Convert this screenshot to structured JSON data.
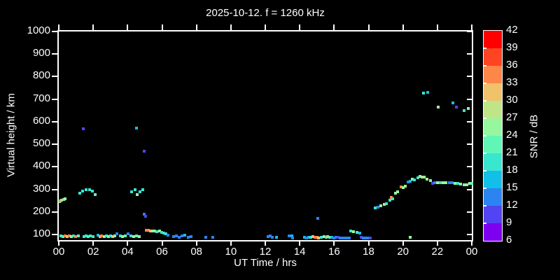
{
  "title": "2025-10-12. f = 1260 kHz",
  "colors": {
    "background": "#000000",
    "foreground": "#ffffff"
  },
  "axes": {
    "xlabel": "UT Time / hrs",
    "ylabel": "Virtual height / km",
    "x_tick_labels": [
      "00",
      "02",
      "04",
      "06",
      "08",
      "10",
      "12",
      "14",
      "16",
      "18",
      "20",
      "22",
      "00"
    ],
    "x_tick_hours": [
      0,
      2,
      4,
      6,
      8,
      10,
      12,
      14,
      16,
      18,
      20,
      22,
      24
    ],
    "y_tick_values": [
      100,
      200,
      300,
      400,
      500,
      600,
      700,
      800,
      900,
      1000
    ],
    "grid": "off"
  },
  "colorbar": {
    "label": "SNR / dB",
    "tick_values": [
      42,
      39,
      36,
      33,
      30,
      27,
      24,
      21,
      18,
      15,
      12,
      9,
      6
    ],
    "range": [
      6,
      42
    ],
    "step": 3,
    "palette_low_to_high": [
      "#7E00F0",
      "#5244F2",
      "#2B84F2",
      "#12BFE8",
      "#39E6CF",
      "#60F7B6",
      "#97F79E",
      "#BFE588",
      "#F0C26B",
      "#FC8748",
      "#FF4422",
      "#FF0000"
    ]
  },
  "chart_data": {
    "type": "scatter",
    "title": "2025-10-12. f = 1260 kHz",
    "xlabel": "UT Time / hrs",
    "ylabel": "Virtual height / km",
    "color_dimension": "SNR / dB",
    "xlim": [
      0,
      24
    ],
    "ylim": [
      75,
      1000
    ],
    "legend_position": "colorbar-right",
    "points_time_height_snr": [
      [
        0.02,
        248,
        25
      ],
      [
        0.06,
        245,
        25
      ],
      [
        0.1,
        248,
        34
      ],
      [
        0.16,
        251,
        31
      ],
      [
        0.3,
        254,
        22
      ],
      [
        0.38,
        257,
        25
      ],
      [
        0.12,
        94,
        19
      ],
      [
        0.24,
        92,
        22
      ],
      [
        0.36,
        94,
        34
      ],
      [
        0.48,
        92,
        31
      ],
      [
        0.6,
        94,
        34
      ],
      [
        0.72,
        92,
        25
      ],
      [
        0.85,
        94,
        19
      ],
      [
        0.97,
        92,
        34
      ],
      [
        1.13,
        94,
        22
      ],
      [
        1.45,
        92,
        19
      ],
      [
        1.58,
        94,
        19
      ],
      [
        1.7,
        92,
        22
      ],
      [
        1.82,
        94,
        19
      ],
      [
        1.98,
        92,
        19
      ],
      [
        2.26,
        96,
        16
      ],
      [
        2.38,
        92,
        31
      ],
      [
        2.5,
        94,
        34
      ],
      [
        2.63,
        92,
        25
      ],
      [
        2.75,
        94,
        19
      ],
      [
        2.87,
        92,
        25
      ],
      [
        2.99,
        94,
        19
      ],
      [
        3.15,
        92,
        31
      ],
      [
        3.27,
        94,
        25
      ],
      [
        3.39,
        103,
        13
      ],
      [
        3.56,
        94,
        19
      ],
      [
        3.72,
        92,
        25
      ],
      [
        3.88,
        94,
        22
      ],
      [
        4.04,
        103,
        13
      ],
      [
        4.2,
        94,
        19
      ],
      [
        4.36,
        92,
        25
      ],
      [
        4.52,
        94,
        22
      ],
      [
        4.68,
        92,
        25
      ],
      [
        1.21,
        282,
        19
      ],
      [
        1.37,
        291,
        19
      ],
      [
        1.58,
        297,
        19
      ],
      [
        1.78,
        297,
        19
      ],
      [
        1.94,
        291,
        19
      ],
      [
        2.1,
        278,
        22
      ],
      [
        1.41,
        568,
        10
      ],
      [
        4.24,
        288,
        19
      ],
      [
        4.44,
        297,
        19
      ],
      [
        4.57,
        278,
        25
      ],
      [
        4.73,
        288,
        19
      ],
      [
        4.89,
        300,
        19
      ],
      [
        4.53,
        571,
        16
      ],
      [
        4.97,
        469,
        10
      ],
      [
        4.97,
        189,
        13
      ],
      [
        5.05,
        180,
        10
      ],
      [
        5.09,
        118,
        34
      ],
      [
        5.21,
        118,
        34
      ],
      [
        5.33,
        115,
        31
      ],
      [
        5.45,
        115,
        25
      ],
      [
        5.58,
        115,
        25
      ],
      [
        5.7,
        112,
        19
      ],
      [
        5.86,
        115,
        25
      ],
      [
        5.98,
        109,
        19
      ],
      [
        6.1,
        106,
        19
      ],
      [
        6.22,
        103,
        19
      ],
      [
        6.34,
        97,
        13
      ],
      [
        6.67,
        91,
        13
      ],
      [
        6.83,
        94,
        13
      ],
      [
        6.99,
        88,
        13
      ],
      [
        7.15,
        94,
        13
      ],
      [
        7.31,
        97,
        16
      ],
      [
        7.52,
        88,
        13
      ],
      [
        7.68,
        91,
        13
      ],
      [
        8.53,
        88,
        13
      ],
      [
        8.93,
        88,
        13
      ],
      [
        12.16,
        91,
        13
      ],
      [
        12.28,
        94,
        13
      ],
      [
        12.4,
        88,
        13
      ],
      [
        12.65,
        88,
        16
      ],
      [
        13.37,
        94,
        13
      ],
      [
        13.54,
        94,
        16
      ],
      [
        13.58,
        85,
        13
      ],
      [
        14.26,
        88,
        16
      ],
      [
        14.39,
        85,
        13
      ],
      [
        14.51,
        88,
        16
      ],
      [
        14.63,
        88,
        19
      ],
      [
        14.75,
        91,
        31
      ],
      [
        14.87,
        88,
        34
      ],
      [
        14.99,
        88,
        34
      ],
      [
        15.11,
        85,
        31
      ],
      [
        15.27,
        88,
        19
      ],
      [
        15.4,
        91,
        25
      ],
      [
        15.52,
        88,
        19
      ],
      [
        15.64,
        91,
        31
      ],
      [
        15.76,
        88,
        22
      ],
      [
        15.88,
        88,
        16
      ],
      [
        16.0,
        85,
        13
      ],
      [
        16.12,
        88,
        13
      ],
      [
        16.24,
        88,
        10
      ],
      [
        16.36,
        85,
        13
      ],
      [
        16.52,
        85,
        13
      ],
      [
        16.64,
        85,
        13
      ],
      [
        16.77,
        85,
        13
      ],
      [
        16.89,
        85,
        13
      ],
      [
        15.07,
        171,
        13
      ],
      [
        16.97,
        115,
        19
      ],
      [
        17.13,
        112,
        25
      ],
      [
        17.33,
        109,
        19
      ],
      [
        17.49,
        106,
        16
      ],
      [
        17.57,
        88,
        10
      ],
      [
        17.69,
        85,
        13
      ],
      [
        17.81,
        85,
        13
      ],
      [
        17.93,
        85,
        13
      ],
      [
        18.1,
        85,
        10
      ],
      [
        18.38,
        217,
        19
      ],
      [
        18.55,
        220,
        13
      ],
      [
        18.71,
        226,
        25
      ],
      [
        18.91,
        232,
        25
      ],
      [
        19.03,
        235,
        19
      ],
      [
        19.23,
        251,
        19
      ],
      [
        19.31,
        263,
        34
      ],
      [
        19.39,
        257,
        19
      ],
      [
        19.56,
        282,
        25
      ],
      [
        19.68,
        288,
        25
      ],
      [
        19.88,
        312,
        34
      ],
      [
        20.0,
        309,
        25
      ],
      [
        20.12,
        315,
        25
      ],
      [
        20.28,
        334,
        13
      ],
      [
        20.4,
        337,
        16
      ],
      [
        20.53,
        346,
        25
      ],
      [
        20.65,
        343,
        19
      ],
      [
        20.85,
        352,
        19
      ],
      [
        21.01,
        358,
        25
      ],
      [
        21.13,
        355,
        28
      ],
      [
        21.25,
        355,
        25
      ],
      [
        21.41,
        346,
        25
      ],
      [
        21.58,
        340,
        25
      ],
      [
        21.74,
        325,
        10
      ],
      [
        21.86,
        328,
        13
      ],
      [
        22.02,
        331,
        25
      ],
      [
        22.18,
        331,
        19
      ],
      [
        22.34,
        331,
        25
      ],
      [
        22.5,
        328,
        25
      ],
      [
        22.71,
        331,
        13
      ],
      [
        22.87,
        328,
        13
      ],
      [
        23.03,
        325,
        25
      ],
      [
        23.19,
        325,
        19
      ],
      [
        23.35,
        322,
        25
      ],
      [
        23.56,
        319,
        25
      ],
      [
        23.72,
        319,
        25
      ],
      [
        23.88,
        325,
        25
      ],
      [
        24.0,
        325,
        22
      ],
      [
        21.21,
        728,
        19
      ],
      [
        21.45,
        731,
        16
      ],
      [
        22.06,
        666,
        25
      ],
      [
        22.91,
        682,
        17
      ],
      [
        23.11,
        666,
        10
      ],
      [
        23.56,
        648,
        19
      ],
      [
        23.8,
        660,
        25
      ],
      [
        20.4,
        88,
        25
      ]
    ]
  }
}
